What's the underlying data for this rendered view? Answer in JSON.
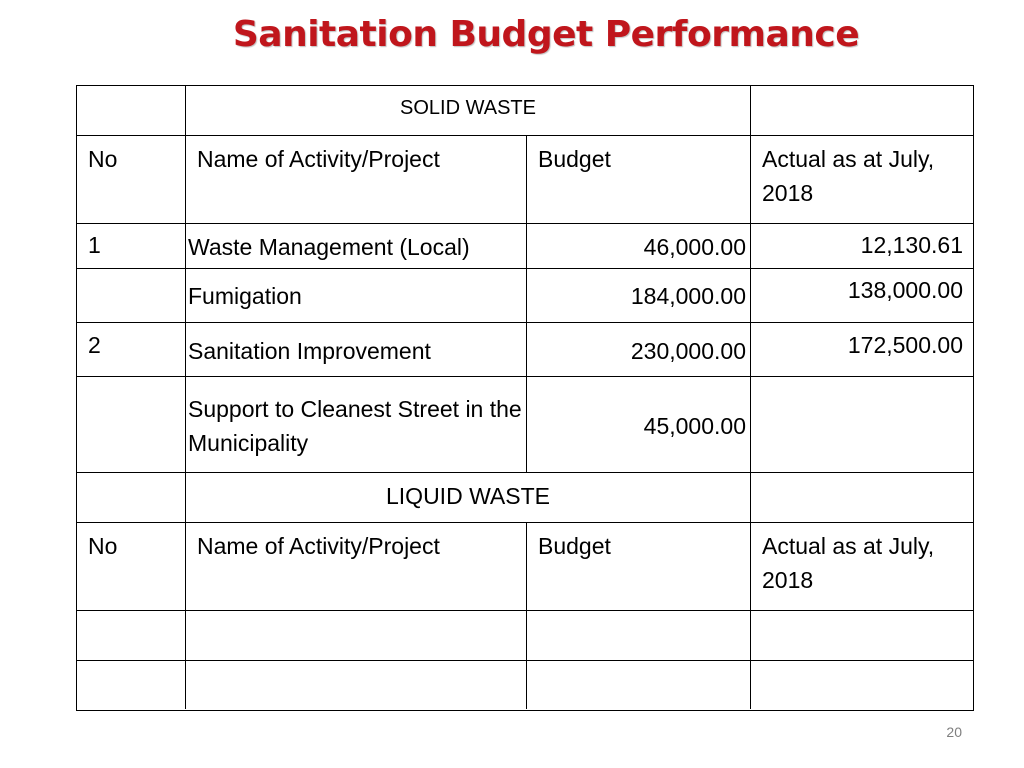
{
  "title": "Sanitation Budget Performance",
  "solid_waste": {
    "section_label": "SOLID WASTE",
    "headers": {
      "no": "No",
      "activity": "Name of Activity/Project",
      "budget": "Budget",
      "actual": "Actual as at July, 2018"
    },
    "rows": [
      {
        "no": "1",
        "activity": "Waste Management (Local)",
        "budget": "46,000.00",
        "actual": "12,130.61"
      },
      {
        "no": "",
        "activity": "Fumigation",
        "budget": "184,000.00",
        "actual": "138,000.00"
      },
      {
        "no": "2",
        "activity": "Sanitation Improvement",
        "budget": "230,000.00",
        "actual": "172,500.00"
      },
      {
        "no": "",
        "activity": "Support to Cleanest Street in the Municipality",
        "budget": "45,000.00",
        "actual": ""
      }
    ]
  },
  "liquid_waste": {
    "section_label": "LIQUID WASTE",
    "headers": {
      "no": "No",
      "activity": "Name of Activity/Project",
      "budget": "Budget",
      "actual": "Actual as at July, 2018"
    }
  },
  "page_number": "20"
}
